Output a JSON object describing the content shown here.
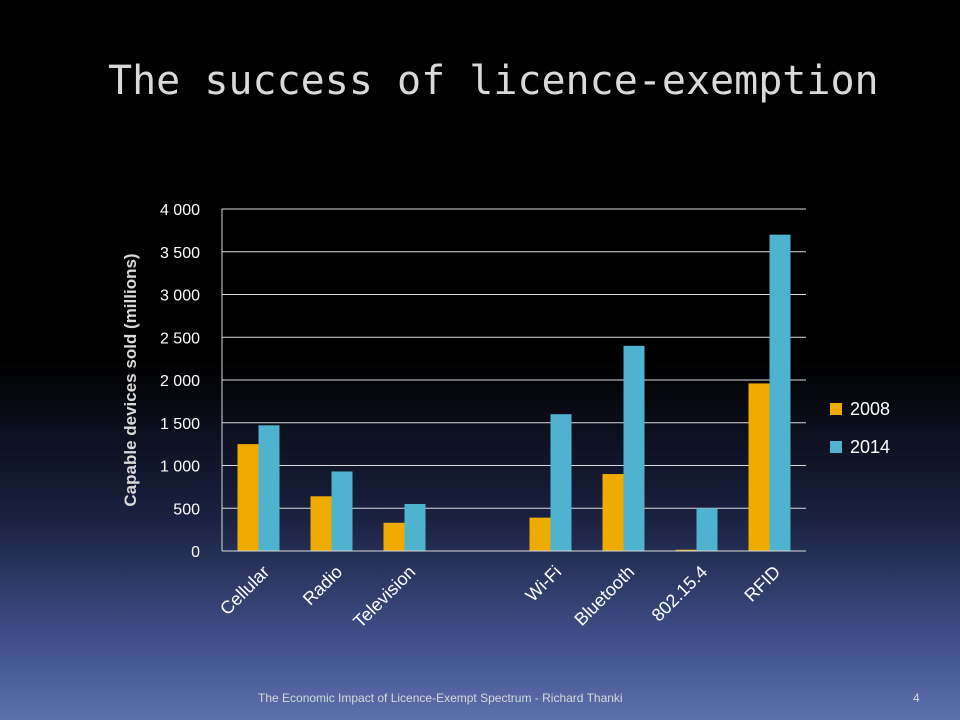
{
  "slide": {
    "title": "The success of licence-exemption",
    "footer": "The Economic Impact of Licence-Exempt Spectrum - Richard Thanki",
    "page_number": "4"
  },
  "chart_data": {
    "type": "bar",
    "title": "",
    "xlabel": "",
    "ylabel": "Capable devices sold (millions)",
    "ylim": [
      0,
      4000
    ],
    "yticks": [
      0,
      500,
      1000,
      1500,
      2000,
      2500,
      3000,
      3500,
      4000
    ],
    "ytick_labels": [
      "0",
      "500",
      "1 000",
      "1 500",
      "2 000",
      "2 500",
      "3 000",
      "3 500",
      "4 000"
    ],
    "grid": true,
    "legend_position": "right",
    "categories": [
      "Cellular",
      "Radio",
      "Television",
      "",
      "Wi-Fi",
      "Bluetooth",
      "802.15.4",
      "RFID"
    ],
    "series": [
      {
        "name": "2008",
        "color": "#f0ab00",
        "values": [
          1250,
          640,
          330,
          0,
          390,
          900,
          15,
          1960
        ]
      },
      {
        "name": "2014",
        "color": "#4fb3cf",
        "values": [
          1470,
          930,
          550,
          0,
          1600,
          2400,
          500,
          3700
        ]
      }
    ]
  }
}
